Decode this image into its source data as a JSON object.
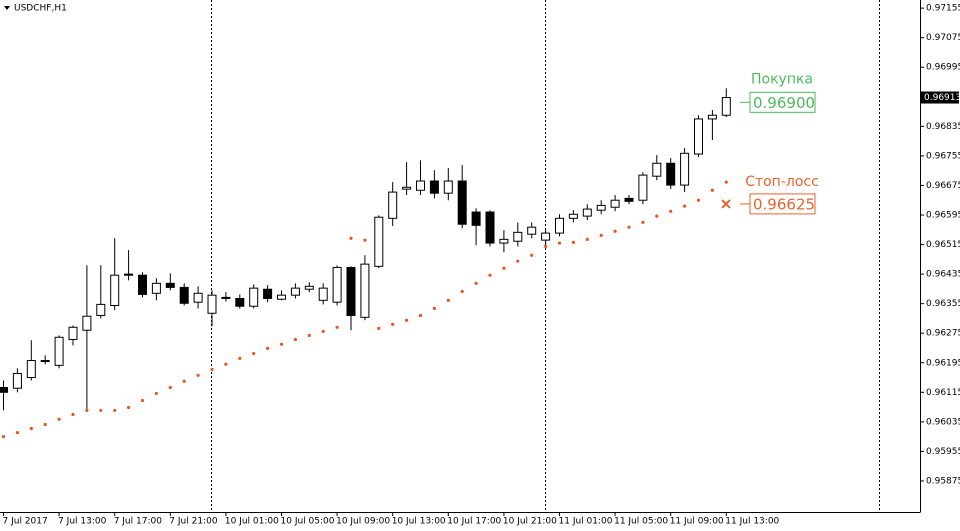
{
  "chart_data": {
    "type": "candlestick",
    "title": "USDCHF,H1",
    "categories": [
      "7 Jul 2017",
      null,
      null,
      null,
      "7 Jul 13:00",
      null,
      null,
      null,
      "7 Jul 17:00",
      null,
      null,
      null,
      "7 Jul 21:00",
      null,
      null,
      null,
      "10 Jul 01:00",
      null,
      null,
      null,
      "10 Jul 05:00",
      null,
      null,
      null,
      "10 Jul 09:00",
      null,
      null,
      null,
      "10 Jul 13:00",
      null,
      null,
      null,
      "10 Jul 17:00",
      null,
      null,
      null,
      "10 Jul 21:00",
      null,
      null,
      null,
      "11 Jul 01:00",
      null,
      null,
      null,
      "11 Jul 05:00",
      null,
      null,
      null,
      "11 Jul 09:00",
      null,
      null,
      null,
      "11 Jul 13:00"
    ],
    "open": [
      0.96128,
      0.96126,
      0.96155,
      0.96201,
      0.96188,
      0.96258,
      0.96283,
      0.96323,
      0.9635,
      0.96435,
      0.96432,
      0.96383,
      0.9641,
      0.96399,
      0.96359,
      0.96329,
      0.96372,
      0.96369,
      0.96348,
      0.96394,
      0.96367,
      0.96378,
      0.96394,
      0.96364,
      0.96359,
      0.96453,
      0.96318,
      0.96456,
      0.96586,
      0.96665,
      0.96662,
      0.96687,
      0.96654,
      0.96687,
      0.96603,
      0.96603,
      0.96519,
      0.96524,
      0.96543,
      0.96527,
      0.96546,
      0.96586,
      0.96592,
      0.96608,
      0.96616,
      0.9664,
      0.96635,
      0.967,
      0.96735,
      0.96676,
      0.9676,
      0.96855,
      0.96865
    ],
    "high": [
      0.96147,
      0.9618,
      0.96256,
      0.96215,
      0.96269,
      0.96296,
      0.96459,
      0.96459,
      0.96532,
      0.965,
      0.9644,
      0.96424,
      0.96437,
      0.9641,
      0.96402,
      0.96391,
      0.96386,
      0.9638,
      0.96407,
      0.96405,
      0.96391,
      0.9641,
      0.96413,
      0.9641,
      0.96459,
      0.96456,
      0.96486,
      0.96594,
      0.96684,
      0.96738,
      0.96743,
      0.96716,
      0.96722,
      0.9673,
      0.96613,
      0.96608,
      0.96554,
      0.96575,
      0.96575,
      0.96559,
      0.96597,
      0.96608,
      0.96624,
      0.96635,
      0.96649,
      0.96649,
      0.96711,
      0.96757,
      0.96749,
      0.96776,
      0.96865,
      0.96879,
      0.96938
    ],
    "low": [
      0.96066,
      0.96115,
      0.96147,
      0.96191,
      0.9618,
      0.96242,
      0.96066,
      0.96315,
      0.96337,
      0.96418,
      0.96372,
      0.96364,
      0.96391,
      0.9635,
      0.96342,
      0.96294,
      0.96361,
      0.96342,
      0.96342,
      0.96359,
      0.96364,
      0.96369,
      0.96386,
      0.96353,
      0.9635,
      0.96283,
      0.9631,
      0.96451,
      0.96565,
      0.96649,
      0.96649,
      0.9664,
      0.96635,
      0.96559,
      0.96513,
      0.9651,
      0.96494,
      0.9651,
      0.96532,
      0.96513,
      0.96537,
      0.96575,
      0.96581,
      0.96597,
      0.96605,
      0.96624,
      0.96624,
      0.96689,
      0.96665,
      0.96657,
      0.96752,
      0.96798,
      0.9686
    ],
    "close": [
      0.96115,
      0.96166,
      0.96201,
      0.96199,
      0.96264,
      0.96291,
      0.96321,
      0.96353,
      0.96432,
      0.96432,
      0.9638,
      0.9641,
      0.96399,
      0.96356,
      0.96383,
      0.96378,
      0.96369,
      0.96348,
      0.96397,
      0.96369,
      0.96378,
      0.96397,
      0.96402,
      0.96397,
      0.96453,
      0.96323,
      0.96462,
      0.96589,
      0.96657,
      0.9667,
      0.96687,
      0.96654,
      0.96687,
      0.9657,
      0.96567,
      0.96519,
      0.96529,
      0.96548,
      0.96562,
      0.96546,
      0.96586,
      0.96597,
      0.96611,
      0.96621,
      0.96635,
      0.96632,
      0.96703,
      0.96735,
      0.96676,
      0.96762,
      0.96855,
      0.96865,
      0.96913
    ],
    "sar_color": "#f0531c",
    "sar_values": [
      0.95995,
      0.96006,
      0.96017,
      0.96028,
      0.96042,
      0.96055,
      0.96066,
      0.96066,
      0.96066,
      0.96074,
      0.96093,
      0.96112,
      0.96128,
      0.96145,
      0.96161,
      0.96177,
      0.96191,
      0.96207,
      0.9622,
      0.96234,
      0.96245,
      0.96258,
      0.96269,
      0.9628,
      0.96291,
      0.96532,
      0.96527,
      0.96288,
      0.96299,
      0.9631,
      0.96323,
      0.96342,
      0.96364,
      0.96388,
      0.9641,
      0.96432,
      0.96451,
      0.9647,
      0.96486,
      0.9651,
      0.96519,
      0.96521,
      0.96529,
      0.9654,
      0.96551,
      0.96562,
      0.96575,
      0.96592,
      0.96605,
      0.96619,
      0.96635,
      0.96662,
      0.96684
    ],
    "ylim": [
      0.95791,
      0.97177
    ],
    "yticks": [
      0.97155,
      0.97075,
      0.96995,
      0.96835,
      0.96755,
      0.96675,
      0.96595,
      0.96515,
      0.96435,
      0.96355,
      0.96275,
      0.96195,
      0.96115,
      0.96035,
      0.95955,
      0.95875
    ],
    "last_price": 0.96913,
    "annotations": [
      {
        "label": "Покупка",
        "value": 0.969,
        "value_label": "0.96900",
        "color": "#4cbb5c"
      },
      {
        "label": "Стоп-лосс",
        "value": 0.96625,
        "value_label": "0.96625",
        "color": "#e8632e"
      }
    ]
  }
}
